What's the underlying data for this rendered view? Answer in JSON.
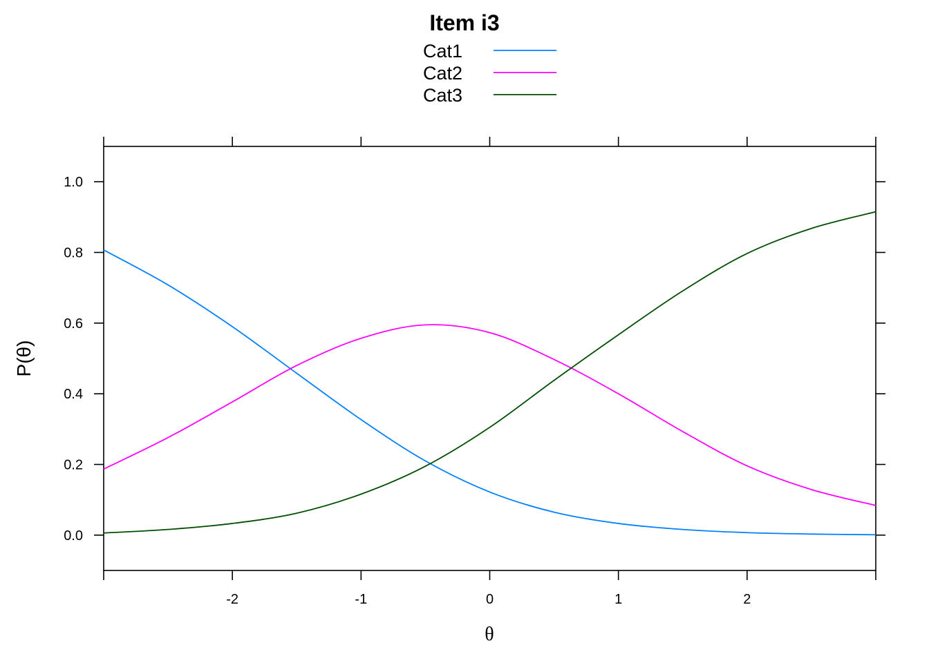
{
  "chart_data": {
    "type": "line",
    "title": "Item i3",
    "xlabel": "θ",
    "ylabel": "P(θ)",
    "xlim": [
      -3,
      3
    ],
    "ylim": [
      -0.1,
      1.1
    ],
    "xticks": [
      -2,
      -1,
      0,
      1,
      2
    ],
    "xtick_labels": [
      "-2",
      "-1",
      "0",
      "1",
      "2"
    ],
    "yticks": [
      0.0,
      0.2,
      0.4,
      0.6,
      0.8,
      1.0
    ],
    "ytick_labels": [
      "0.0",
      "0.2",
      "0.4",
      "0.6",
      "0.8",
      "1.0"
    ],
    "grid": false,
    "legend_position": "top",
    "x": [
      -3,
      -2.5,
      -2,
      -1.5,
      -1,
      -0.5,
      0,
      0.5,
      1,
      1.5,
      2,
      2.5,
      3
    ],
    "series": [
      {
        "name": "Cat1",
        "color": "#0080ff",
        "values": [
          0.807,
          0.708,
          0.59,
          0.458,
          0.327,
          0.21,
          0.122,
          0.065,
          0.033,
          0.016,
          0.007,
          0.003,
          0.001
        ]
      },
      {
        "name": "Cat2",
        "color": "#ff00ff",
        "values": [
          0.187,
          0.276,
          0.377,
          0.48,
          0.557,
          0.595,
          0.573,
          0.497,
          0.4,
          0.293,
          0.196,
          0.129,
          0.084
        ]
      },
      {
        "name": "Cat3",
        "color": "#004d00",
        "values": [
          0.006,
          0.016,
          0.033,
          0.062,
          0.116,
          0.195,
          0.305,
          0.438,
          0.567,
          0.691,
          0.797,
          0.868,
          0.915
        ]
      }
    ]
  }
}
